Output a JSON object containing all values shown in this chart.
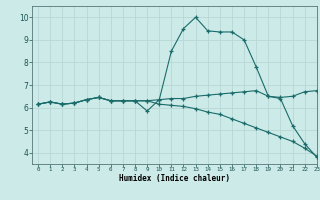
{
  "bg_color": "#cceae7",
  "grid_color": "#b8d8d5",
  "line_color": "#1a6b6b",
  "xlabel": "Humidex (Indice chaleur)",
  "xlim": [
    -0.5,
    23
  ],
  "ylim": [
    3.5,
    10.5
  ],
  "yticks": [
    4,
    5,
    6,
    7,
    8,
    9,
    10
  ],
  "xticks": [
    0,
    1,
    2,
    3,
    4,
    5,
    6,
    7,
    8,
    9,
    10,
    11,
    12,
    13,
    14,
    15,
    16,
    17,
    18,
    19,
    20,
    21,
    22,
    23
  ],
  "line1_x": [
    0,
    1,
    2,
    3,
    4,
    5,
    6,
    7,
    8,
    9,
    10,
    11,
    12,
    13,
    14,
    15,
    16,
    17,
    18,
    19,
    20,
    21,
    22,
    23
  ],
  "line1_y": [
    6.15,
    6.25,
    6.15,
    6.2,
    6.35,
    6.45,
    6.3,
    6.3,
    6.3,
    5.85,
    6.35,
    8.5,
    9.5,
    10.0,
    9.4,
    9.35,
    9.35,
    9.0,
    7.8,
    6.5,
    6.4,
    5.2,
    4.4,
    3.8
  ],
  "line2_x": [
    0,
    1,
    2,
    3,
    4,
    5,
    6,
    7,
    8,
    9,
    10,
    11,
    12,
    13,
    14,
    15,
    16,
    17,
    18,
    19,
    20,
    21,
    22,
    23
  ],
  "line2_y": [
    6.15,
    6.25,
    6.15,
    6.2,
    6.35,
    6.45,
    6.3,
    6.3,
    6.3,
    6.3,
    6.35,
    6.4,
    6.4,
    6.5,
    6.55,
    6.6,
    6.65,
    6.7,
    6.75,
    6.5,
    6.45,
    6.5,
    6.7,
    6.75
  ],
  "line3_x": [
    0,
    1,
    2,
    3,
    4,
    5,
    6,
    7,
    8,
    9,
    10,
    11,
    12,
    13,
    14,
    15,
    16,
    17,
    18,
    19,
    20,
    21,
    22,
    23
  ],
  "line3_y": [
    6.15,
    6.25,
    6.15,
    6.2,
    6.35,
    6.45,
    6.3,
    6.3,
    6.3,
    6.3,
    6.15,
    6.1,
    6.05,
    5.95,
    5.8,
    5.7,
    5.5,
    5.3,
    5.1,
    4.9,
    4.7,
    4.5,
    4.2,
    3.85
  ]
}
